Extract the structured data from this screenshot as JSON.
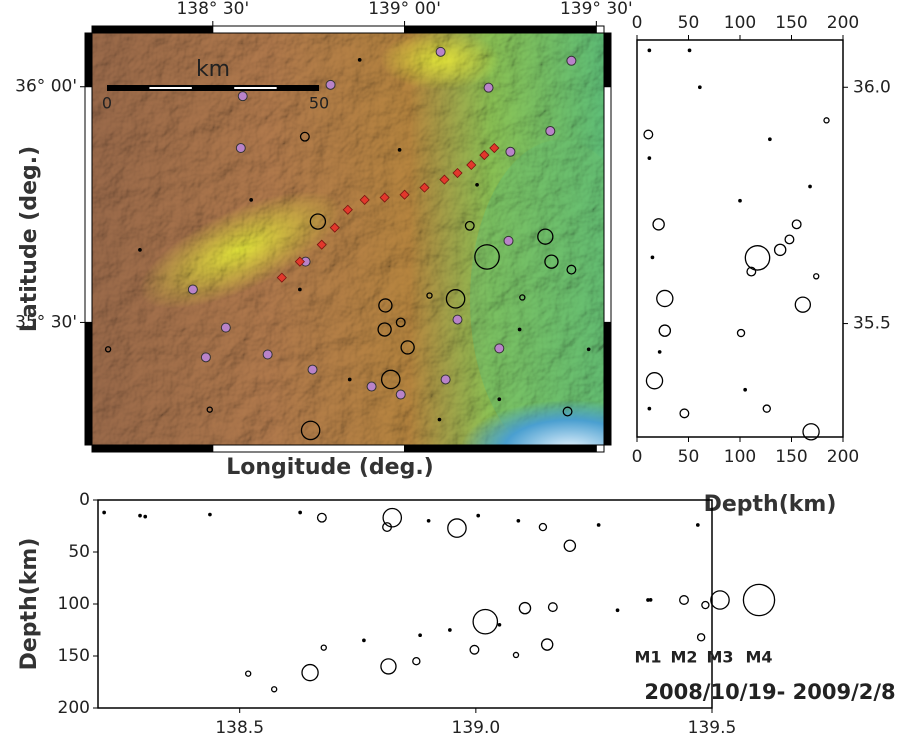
{
  "chart_data": [
    {
      "type": "scatter",
      "xlabel": "Longitude (deg.)",
      "ylabel": "Latitude (deg.)",
      "xlim": [
        138.185,
        139.52
      ],
      "ylim": [
        35.24,
        36.114
      ],
      "xticks": [
        {
          "value": 138.5,
          "label": "138° 30'"
        },
        {
          "value": 139.0,
          "label": "139° 00'"
        },
        {
          "value": 139.5,
          "label": "139° 30'"
        }
      ],
      "yticks": [
        {
          "value": 35.5,
          "label": "35° 30'"
        },
        {
          "value": 36.0,
          "label": "36° 00'"
        }
      ],
      "scale_bar": {
        "label": "km",
        "ticks": [
          0,
          50
        ]
      },
      "series": [
        {
          "marker": "circle",
          "color": "#000000",
          "x": [
            139.215,
            139.133,
            138.964,
            139.008,
            139.367,
            139.383,
            138.774,
            138.755,
            138.95,
            138.99,
            138.948,
            139.17,
            139.435,
            139.425,
            138.492,
            138.227,
            138.74,
            139.065,
            139.307,
            139.189,
            139.3,
            138.857,
            138.6,
            138.31,
            139.48,
            138.883,
            139.247,
            138.727,
            139.091,
            138.987
          ],
          "values": [
            35.639,
            35.55,
            35.379,
            35.447,
            35.682,
            35.629,
            35.714,
            35.271,
            35.536,
            35.5,
            35.485,
            35.705,
            35.612,
            35.311,
            35.315,
            35.443,
            35.894,
            35.557,
            35.553,
            35.792,
            35.485,
            35.379,
            35.76,
            35.654,
            35.443,
            36.057,
            35.337,
            35.57,
            35.294,
            35.866
          ],
          "sizes": [
            3.5,
            3,
            3,
            2.5,
            2.7,
            2.5,
            2.7,
            3,
            2.5,
            2,
            2.5,
            2,
            2,
            2,
            1.5,
            1.5,
            2,
            1.5,
            1.5,
            1,
            1,
            1,
            1,
            1,
            1,
            1,
            1,
            1,
            1,
            1
          ]
        },
        {
          "marker": "station",
          "color": "#b983c9",
          "x": [
            138.448,
            138.482,
            138.643,
            138.573,
            138.807,
            139.094,
            139.435,
            139.219,
            139.276,
            139.38,
            139.271,
            139.138,
            139.247,
            139.107,
            138.914,
            138.76,
            138.99,
            138.742,
            138.534,
            138.578
          ],
          "values": [
            35.57,
            35.426,
            35.432,
            35.87,
            36.004,
            36.074,
            36.055,
            35.998,
            35.862,
            35.906,
            35.673,
            35.506,
            35.445,
            35.379,
            35.364,
            35.4,
            35.347,
            35.629,
            35.489,
            35.98
          ]
        },
        {
          "marker": "diamond",
          "color": "#e2382c",
          "x": [
            138.68,
            138.727,
            138.784,
            138.818,
            138.852,
            138.896,
            138.948,
            139.0,
            139.052,
            139.104,
            139.138,
            139.174,
            139.208,
            139.234
          ],
          "values": [
            35.595,
            35.629,
            35.665,
            35.701,
            35.739,
            35.76,
            35.765,
            35.771,
            35.786,
            35.803,
            35.817,
            35.834,
            35.855,
            35.87
          ]
        }
      ]
    },
    {
      "type": "scatter",
      "xlabel": "Depth(km)",
      "xlim": [
        0,
        200
      ],
      "ylim": [
        35.26,
        36.1
      ],
      "xticks": [
        0,
        50,
        100,
        150,
        200
      ],
      "yticks": [
        35.5,
        {
          "value": 36.0,
          "label": "36.0"
        }
      ],
      "series": [
        {
          "marker": "circle",
          "color": "#000000",
          "x": [
            117,
            161,
            169,
            27,
            17,
            27,
            21,
            139,
            148,
            111,
            155,
            11,
            46,
            126,
            101,
            174,
            184,
            12,
            15,
            22,
            12,
            61,
            129,
            100,
            168,
            105,
            12,
            51
          ],
          "values": [
            35.639,
            35.54,
            35.271,
            35.553,
            35.379,
            35.485,
            35.71,
            35.656,
            35.678,
            35.61,
            35.71,
            35.9,
            35.31,
            35.32,
            35.48,
            35.6,
            35.93,
            35.85,
            35.64,
            35.44,
            35.32,
            36.0,
            35.89,
            35.76,
            35.79,
            35.36,
            36.078,
            36.078
          ],
          "sizes": [
            3.5,
            2.7,
            2.8,
            2.8,
            2.8,
            2.3,
            2.3,
            2.3,
            2,
            2,
            2,
            2,
            2,
            1.8,
            1.8,
            1.5,
            1.5,
            1,
            1,
            1,
            1,
            1,
            1,
            1,
            1,
            1,
            1,
            1
          ]
        }
      ]
    },
    {
      "type": "scatter",
      "ylabel": "Depth(km)",
      "xlim": [
        138.2,
        139.5
      ],
      "ylim": [
        200,
        0
      ],
      "xticks": [
        138.5,
        {
          "value": 139.0,
          "label": "139.0"
        },
        139.5
      ],
      "yticks": [
        0,
        50,
        100,
        150,
        200
      ],
      "series": [
        {
          "marker": "circle",
          "color": "#000000",
          "x": [
            139.02,
            138.96,
            138.823,
            138.649,
            138.815,
            139.151,
            139.104,
            139.163,
            139.199,
            138.997,
            138.874,
            138.674,
            138.812,
            139.486,
            139.477,
            139.142,
            138.678,
            138.573,
            138.518,
            139.085,
            138.289,
            138.3,
            138.437,
            138.628,
            138.9,
            139.005,
            139.09,
            139.26,
            139.37,
            139.47,
            138.882,
            138.945,
            139.05,
            139.3,
            138.213,
            138.763
          ],
          "values": [
            117,
            27,
            17,
            166,
            160,
            139,
            104,
            103,
            44,
            144,
            155,
            17,
            26,
            101,
            132,
            26,
            142,
            182,
            167,
            149,
            15,
            16,
            14,
            12,
            20,
            15,
            20,
            24,
            96,
            24,
            130,
            125,
            120,
            106,
            12,
            135
          ],
          "sizes": [
            3.5,
            3,
            3,
            2.8,
            2.7,
            2.3,
            2.3,
            2,
            2.3,
            2,
            1.8,
            2,
            2,
            1.8,
            1.8,
            1.8,
            1.5,
            1.5,
            1.5,
            1.5,
            1,
            1,
            1,
            1,
            1,
            1,
            1,
            1,
            1,
            1,
            1,
            1,
            1,
            1,
            1,
            1
          ]
        }
      ]
    },
    {
      "type": "legend",
      "labels": [
        "M1",
        "M2",
        "M3",
        "M4"
      ],
      "sizes": [
        1,
        2,
        3,
        4
      ],
      "annotation": "2008/10/19- 2009/2/8"
    }
  ]
}
